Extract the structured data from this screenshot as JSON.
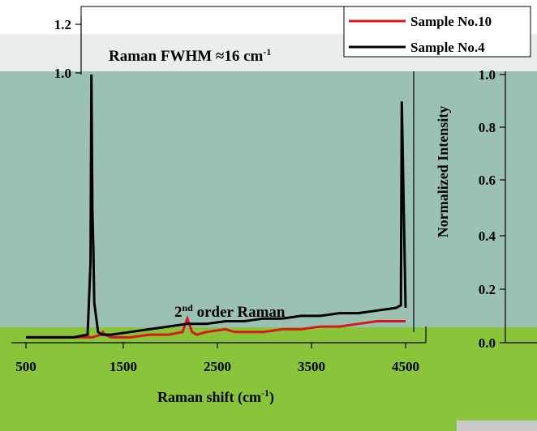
{
  "chart_data": {
    "type": "line",
    "title": "",
    "xlabel": "Raman shift",
    "xlabel_unit_base": "cm",
    "xlabel_unit_sup": "-1",
    "ylabel": "Normalized Intensity",
    "xlim": [
      500,
      4500
    ],
    "ylim": [
      0.0,
      1.2
    ],
    "x_ticks": [
      "500",
      "1500",
      "2500",
      "3500",
      "4500"
    ],
    "y_ticks_left": [
      "1.2",
      "1.0"
    ],
    "y_ticks_right": [
      "1.0",
      "0.8",
      "0.6",
      "0.4",
      "0.2",
      "0.0"
    ],
    "annotations": {
      "fwhm": "Raman FWHM ≈16 cm",
      "fwhm_sup": "-1",
      "second_order_base": "2",
      "second_order_sup": "nd",
      "second_order_rest": " order Raman"
    },
    "legend": {
      "position": "top-right"
    },
    "series": [
      {
        "name": "Sample No.10",
        "color": "#d7191c",
        "x": [
          500,
          800,
          1000,
          1200,
          1290,
          1310,
          1330,
          1400,
          1600,
          1800,
          2000,
          2150,
          2200,
          2250,
          2300,
          2400,
          2600,
          2700,
          2800,
          3000,
          3200,
          3400,
          3600,
          3800,
          4000,
          4200,
          4400,
          4500
        ],
        "y": [
          0.02,
          0.02,
          0.02,
          0.02,
          0.03,
          0.04,
          0.03,
          0.02,
          0.02,
          0.03,
          0.03,
          0.04,
          0.09,
          0.04,
          0.03,
          0.04,
          0.05,
          0.04,
          0.04,
          0.04,
          0.05,
          0.05,
          0.06,
          0.06,
          0.07,
          0.08,
          0.08,
          0.08
        ]
      },
      {
        "name": "Sample No.4",
        "color": "#000000",
        "x": [
          500,
          800,
          1000,
          1150,
          1180,
          1190,
          1200,
          1210,
          1220,
          1260,
          1300,
          1400,
          1600,
          1800,
          2000,
          2200,
          2400,
          2600,
          2800,
          3000,
          3200,
          3400,
          3600,
          3800,
          4000,
          4200,
          4400,
          4450,
          4460,
          4500
        ],
        "y": [
          0.02,
          0.02,
          0.02,
          0.03,
          0.3,
          1.0,
          0.5,
          0.35,
          0.15,
          0.04,
          0.03,
          0.03,
          0.04,
          0.05,
          0.06,
          0.07,
          0.07,
          0.08,
          0.08,
          0.09,
          0.09,
          0.1,
          0.1,
          0.11,
          0.11,
          0.12,
          0.13,
          0.14,
          0.9,
          0.13
        ]
      }
    ]
  }
}
